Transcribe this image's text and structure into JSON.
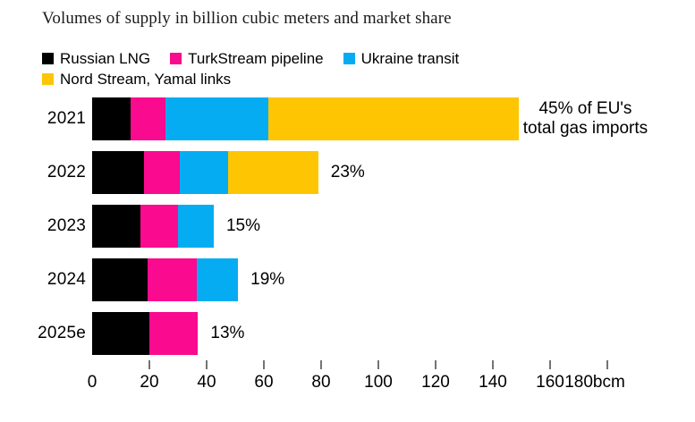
{
  "title": "Volumes of supply in billion cubic meters and market share",
  "colors": {
    "black": "#000000",
    "pink": "#FA0A8E",
    "blue": "#06ACF2",
    "yellow": "#FEC502",
    "tick": "#737373",
    "text": "#000000"
  },
  "legend": {
    "items": [
      {
        "label": "Russian LNG",
        "color_key": "black"
      },
      {
        "label": "TurkStream pipeline",
        "color_key": "pink"
      },
      {
        "label": "Ukraine transit",
        "color_key": "blue"
      },
      {
        "label": "Nord Stream, Yamal links",
        "color_key": "yellow"
      }
    ]
  },
  "chart_data": {
    "type": "bar",
    "orientation": "horizontal",
    "stacked": true,
    "title": "Volumes of supply in billion cubic meters and market share",
    "unit": "bcm",
    "categories": [
      "2021",
      "2022",
      "2023",
      "2024",
      "2025e"
    ],
    "series": [
      {
        "name": "Russian LNG",
        "color_key": "black",
        "values": [
          13.5,
          18,
          17,
          19.5,
          20
        ]
      },
      {
        "name": "TurkStream pipeline",
        "color_key": "pink",
        "values": [
          12,
          12.5,
          13,
          17,
          17
        ]
      },
      {
        "name": "Ukraine transit",
        "color_key": "blue",
        "values": [
          36,
          17,
          12.5,
          14.5,
          0
        ]
      },
      {
        "name": "Nord Stream, Yamal links",
        "color_key": "yellow",
        "values": [
          87.5,
          31.5,
          0,
          0,
          0
        ]
      }
    ],
    "totals_bcm": [
      149,
      79,
      42.5,
      51,
      37
    ],
    "market_share_pct": [
      45,
      23,
      15,
      19,
      13
    ],
    "bar_labels": [
      [
        "45% of EU's",
        "total gas imports"
      ],
      [
        "23%"
      ],
      [
        "15%"
      ],
      [
        "19%"
      ],
      [
        "13%"
      ]
    ],
    "x_ticks": [
      0,
      20,
      40,
      60,
      80,
      100,
      120,
      140,
      160,
      180
    ],
    "x_tick_suffix": "bcm",
    "xlim": [
      0,
      180
    ],
    "grid": false,
    "legend_position": "top"
  }
}
